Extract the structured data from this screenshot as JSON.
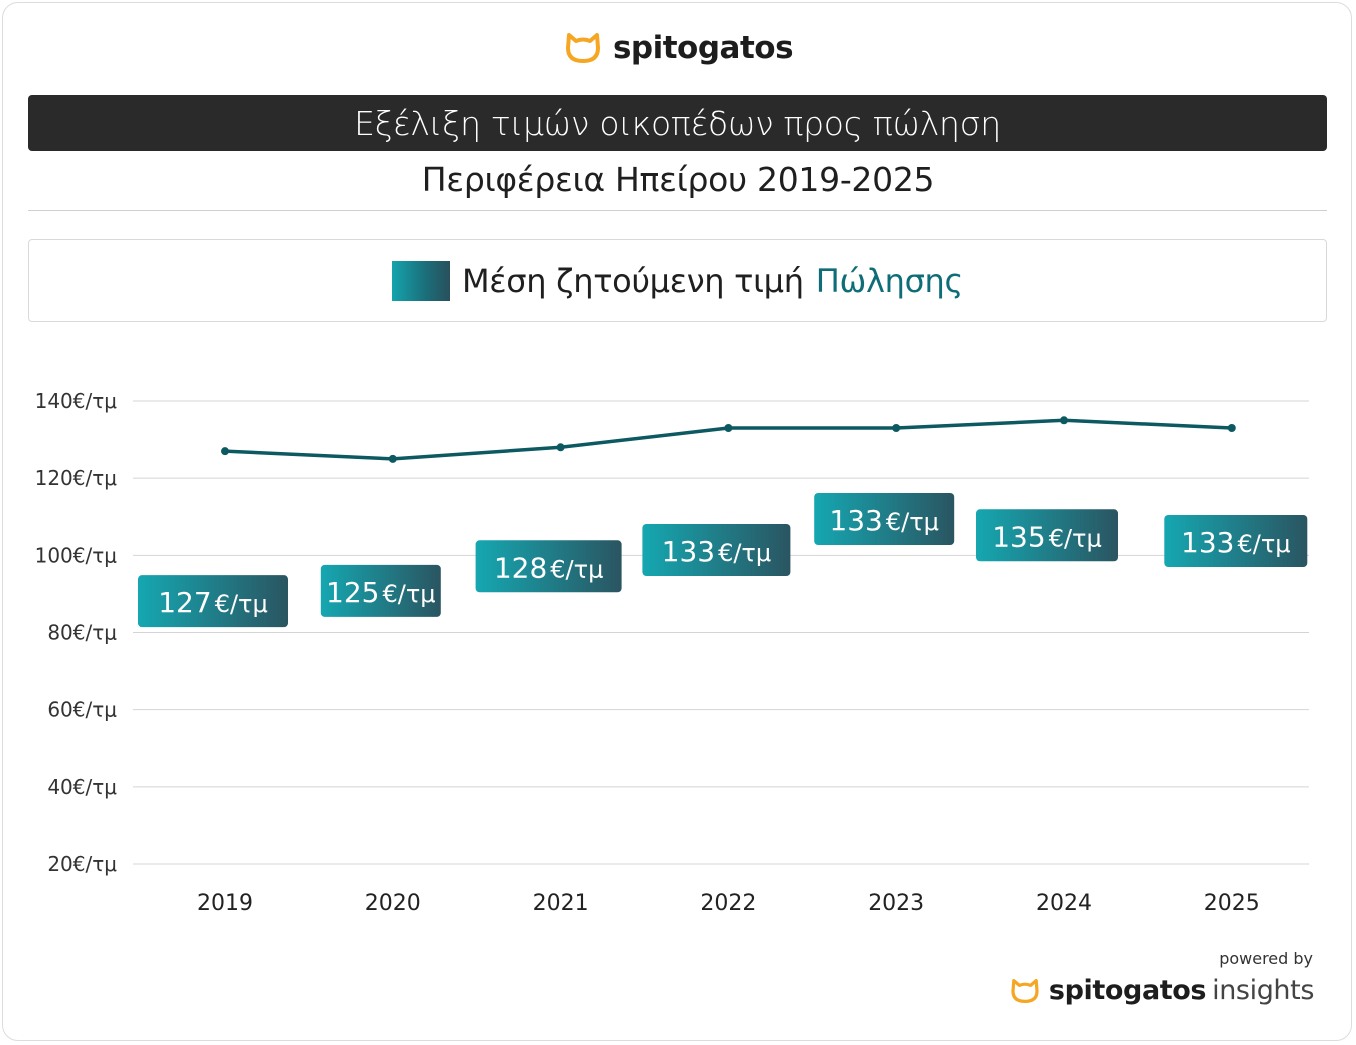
{
  "brand": {
    "name": "spitogatos",
    "logo_icon": "cat-head-icon",
    "logo_color": "#f5a623"
  },
  "header": {
    "title": "Εξέλιξη τιμών οικοπέδων προς πώληση",
    "subtitle": "Περιφέρεια Ηπείρου 2019-2025"
  },
  "legend": {
    "text": "Μέση ζητούμενη τιμή",
    "accent": "Πώλησης"
  },
  "footer": {
    "powered_by": "powered by",
    "brand": "spitogatos",
    "product": "insights"
  },
  "colors": {
    "line": "#0d5961",
    "grid": "#d4d4d4",
    "label_start": "#15a7b1",
    "label_end": "#2a5561",
    "accent_text": "#0f6d78"
  },
  "chart_data": {
    "type": "line",
    "x": [
      "2019",
      "2020",
      "2021",
      "2022",
      "2023",
      "2024",
      "2025"
    ],
    "series": [
      {
        "values": [
          127,
          125,
          128,
          133,
          133,
          135,
          133
        ]
      }
    ],
    "ylim": [
      20,
      140
    ],
    "yticks": [
      140,
      120,
      100,
      80,
      60,
      40,
      20
    ],
    "ytick_labels": [
      "140€/τμ",
      "120€/τμ",
      "100€/τμ",
      "80€/τμ",
      "60€/τμ",
      "40€/τμ",
      "20€/τμ"
    ],
    "data_labels": [
      {
        "value": "127",
        "unit": "€/τμ"
      },
      {
        "value": "125",
        "unit": "€/τμ"
      },
      {
        "value": "128",
        "unit": "€/τμ"
      },
      {
        "value": "133",
        "unit": "€/τμ"
      },
      {
        "value": "133",
        "unit": "€/τμ"
      },
      {
        "value": "135",
        "unit": "€/τμ"
      },
      {
        "value": "133",
        "unit": "€/τμ"
      }
    ],
    "grid": true,
    "legend": "top"
  }
}
